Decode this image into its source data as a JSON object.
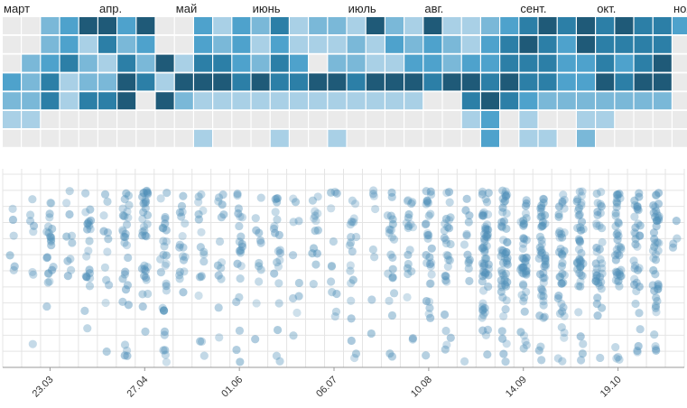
{
  "colors": {
    "empty": "#eaeaea",
    "scale": [
      "#a9d0e6",
      "#7ab8d8",
      "#4ea2cc",
      "#2c7fa7",
      "#1f5a78",
      "#163446"
    ],
    "dot": "#4f8fb8",
    "grid": "#e4e4e4"
  },
  "chart_data": [
    {
      "type": "heatmap",
      "month_labels": [
        "март",
        "апр.",
        "май",
        "июнь",
        "июль",
        "авг.",
        "сент.",
        "окт.",
        "ноя"
      ],
      "month_label_weeks": [
        0,
        5,
        9,
        13,
        18,
        22,
        27,
        31,
        35
      ],
      "weeks": 36,
      "rows": 7,
      "values": [
        [
          0,
          0,
          2,
          3,
          5,
          5,
          3,
          5,
          0,
          0,
          3,
          1,
          3,
          2,
          4,
          1,
          2,
          2,
          1,
          5,
          2,
          1,
          5,
          1,
          1,
          2,
          3,
          4,
          5,
          4,
          5,
          4,
          5,
          4,
          4,
          3
        ],
        [
          0,
          0,
          2,
          3,
          1,
          4,
          2,
          3,
          0,
          0,
          3,
          2,
          3,
          1,
          3,
          1,
          1,
          1,
          2,
          1,
          3,
          2,
          3,
          2,
          1,
          3,
          4,
          5,
          4,
          3,
          5,
          4,
          4,
          4,
          4,
          0
        ],
        [
          0,
          2,
          3,
          4,
          2,
          1,
          4,
          2,
          5,
          1,
          4,
          4,
          3,
          2,
          4,
          3,
          0,
          2,
          2,
          1,
          1,
          3,
          3,
          2,
          3,
          3,
          4,
          4,
          4,
          3,
          3,
          4,
          3,
          4,
          5,
          0
        ],
        [
          3,
          2,
          4,
          1,
          2,
          2,
          5,
          4,
          1,
          5,
          5,
          5,
          4,
          5,
          4,
          4,
          5,
          5,
          4,
          5,
          5,
          5,
          4,
          5,
          5,
          4,
          5,
          4,
          4,
          3,
          3,
          5,
          4,
          5,
          5,
          0
        ],
        [
          2,
          2,
          4,
          1,
          4,
          4,
          5,
          0,
          5,
          2,
          1,
          1,
          1,
          1,
          1,
          1,
          1,
          1,
          1,
          1,
          1,
          1,
          0,
          0,
          4,
          5,
          4,
          3,
          2,
          2,
          2,
          2,
          2,
          2,
          2,
          0
        ],
        [
          1,
          1,
          0,
          0,
          0,
          0,
          0,
          0,
          0,
          0,
          0,
          0,
          0,
          0,
          0,
          0,
          0,
          0,
          0,
          0,
          0,
          0,
          0,
          0,
          1,
          3,
          0,
          1,
          0,
          0,
          1,
          1,
          0,
          0,
          0,
          0
        ],
        [
          0,
          0,
          0,
          0,
          0,
          0,
          0,
          0,
          0,
          0,
          1,
          0,
          0,
          0,
          1,
          0,
          0,
          1,
          0,
          0,
          0,
          0,
          0,
          0,
          0,
          3,
          0,
          1,
          1,
          0,
          2,
          0,
          0,
          0,
          0,
          0
        ]
      ]
    },
    {
      "type": "scatter",
      "x_tick_labels": [
        "23.03",
        "27.04",
        "01.06",
        "06.07",
        "10.08",
        "14.09",
        "19.10"
      ],
      "x_tick_weeks": [
        2.5,
        7.5,
        12.5,
        17.5,
        22.5,
        27.5,
        32.5
      ],
      "weeks": 36,
      "ylim": [
        0,
        24
      ],
      "y_gridlines": 13,
      "point_counts": [
        6,
        8,
        22,
        10,
        22,
        12,
        30,
        35,
        30,
        18,
        18,
        14,
        22,
        12,
        22,
        10,
        14,
        12,
        20,
        8,
        22,
        20,
        32,
        28,
        14,
        60,
        55,
        45,
        50,
        40,
        45,
        38,
        42,
        35,
        45,
        4
      ],
      "dot_alpha_base": 0.28
    }
  ]
}
